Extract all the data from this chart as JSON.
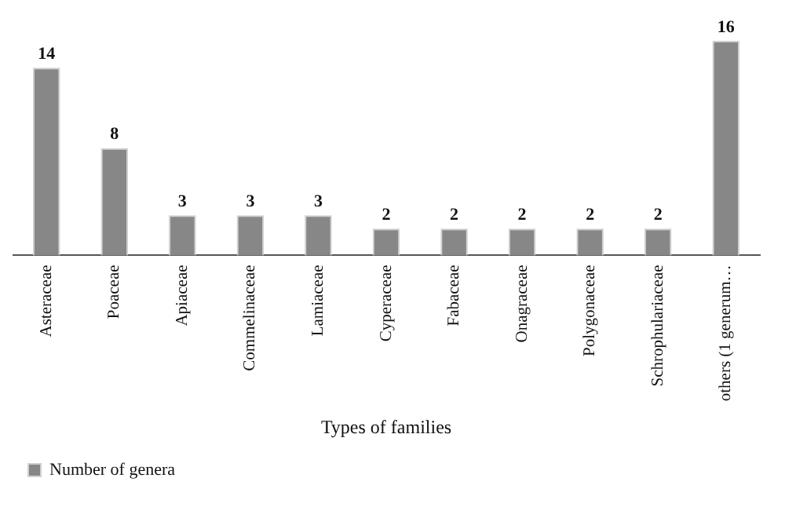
{
  "chart_data": {
    "type": "bar",
    "xlabel": "Types of families",
    "categories": [
      "Asteraceae",
      "Poaceae",
      "Apiaceae",
      "Commelinaceae",
      "Lamiaceae",
      "Cyperaceae",
      "Fabaceae",
      "Onagraceae",
      "Polygonaceae",
      "Schrophulariaceae",
      "others (1 generum…"
    ],
    "series": [
      {
        "name": "Number of genera",
        "color": "#878787",
        "values": [
          14,
          8,
          3,
          3,
          3,
          2,
          2,
          2,
          2,
          2,
          16
        ]
      }
    ],
    "data_labels": true,
    "legend": "bottom left",
    "grid": false
  }
}
